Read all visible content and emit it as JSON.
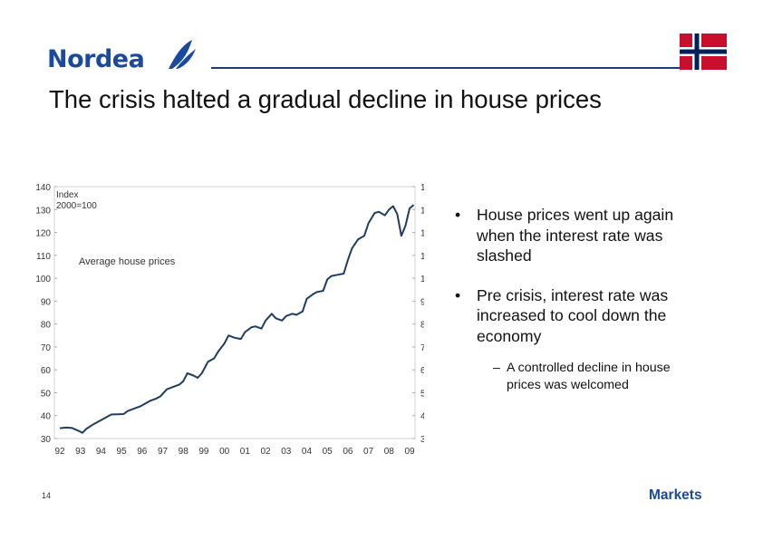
{
  "header": {
    "logo_text": "Nordea",
    "title": "The crisis halted a gradual decline in house prices",
    "flag": "norway-flag"
  },
  "colors": {
    "brand_blue": "#1b4a9c",
    "line": "#1f3d63",
    "flag_red": "#c8102e",
    "flag_blue": "#00205b"
  },
  "chart_data": {
    "type": "line",
    "index_label_line1": "Index",
    "index_label_line2": "2000=100",
    "series_label": "Average house prices",
    "x_ticks": [
      "92",
      "93",
      "94",
      "95",
      "96",
      "97",
      "98",
      "99",
      "00",
      "01",
      "02",
      "03",
      "04",
      "05",
      "06",
      "07",
      "08",
      "09"
    ],
    "y_ticks": [
      30,
      40,
      50,
      60,
      70,
      80,
      90,
      100,
      110,
      120,
      130,
      140
    ],
    "ylim": [
      30,
      140
    ],
    "grid": false,
    "series": [
      {
        "x": [
          1992.0,
          1992.3,
          1992.6,
          1992.9,
          1993.1,
          1993.3,
          1993.6,
          1993.9,
          1994.2,
          1994.5,
          1994.8,
          1995.1,
          1995.3,
          1995.6,
          1995.9,
          1996.1,
          1996.4,
          1996.7,
          1996.9,
          1997.2,
          1997.5,
          1997.8,
          1998.0,
          1998.2,
          1998.5,
          1998.7,
          1998.9,
          1999.2,
          1999.5,
          1999.7,
          2000.0,
          2000.2,
          2000.5,
          2000.8,
          2001.0,
          2001.3,
          2001.5,
          2001.8,
          2002.0,
          2002.3,
          2002.5,
          2002.8,
          2003.0,
          2003.3,
          2003.5,
          2003.8,
          2004.0,
          2004.3,
          2004.5,
          2004.8,
          2005.0,
          2005.2,
          2005.5,
          2005.8,
          2006.0,
          2006.2,
          2006.5,
          2006.8,
          2007.0,
          2007.3,
          2007.5,
          2007.8,
          2008.0,
          2008.2,
          2008.4,
          2008.6,
          2008.8,
          2009.0,
          2009.2
        ],
        "y": [
          34.5,
          34.8,
          34.6,
          33.4,
          32.5,
          34.3,
          36.0,
          37.5,
          39.0,
          40.5,
          40.6,
          40.7,
          42.0,
          43.0,
          44.0,
          45.0,
          46.5,
          47.5,
          48.5,
          51.5,
          52.5,
          53.5,
          55.0,
          58.5,
          57.5,
          56.5,
          58.5,
          63.5,
          65.0,
          68.0,
          71.5,
          75.0,
          74.0,
          73.5,
          76.5,
          78.5,
          79.0,
          78.0,
          81.5,
          84.5,
          82.5,
          81.5,
          83.5,
          84.5,
          84.0,
          85.5,
          91.0,
          93.0,
          94.0,
          94.5,
          99.5,
          101.0,
          101.5,
          102.0,
          108.0,
          113.0,
          117.0,
          118.5,
          124.0,
          128.5,
          129.0,
          127.5,
          130.0,
          131.5,
          128.0,
          118.5,
          123.0,
          130.5,
          132.0
        ]
      }
    ]
  },
  "bullets": [
    {
      "dot": "•",
      "text_lines": [
        "House prices went up again",
        "when the interest rate was",
        "slashed"
      ]
    },
    {
      "dot": "•",
      "text_lines": [
        "Pre crisis, interest rate was",
        "increased to cool down the",
        "economy"
      ]
    }
  ],
  "sub_bullet": {
    "dash": "–",
    "text_lines": [
      "A controlled decline in house",
      "prices was welcomed"
    ]
  },
  "footer": {
    "page_number": "14",
    "section": "Markets"
  }
}
